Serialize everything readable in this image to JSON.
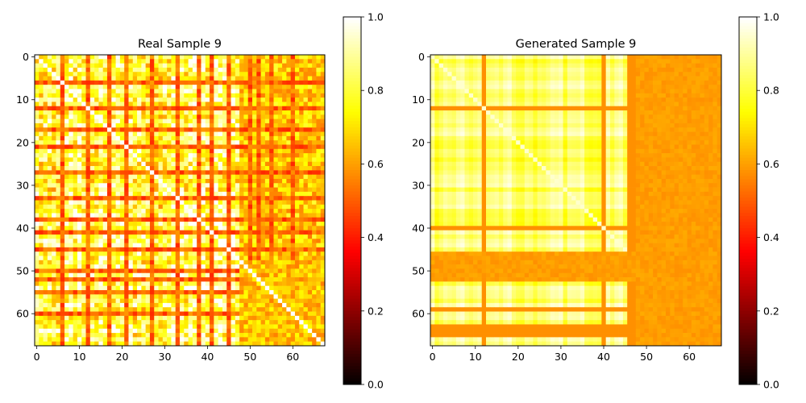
{
  "chart_data": [
    {
      "type": "heatmap",
      "title": "Real Sample 9",
      "colormap": "hot",
      "size": 68,
      "x_ticks": [
        "0",
        "10",
        "20",
        "30",
        "40",
        "50",
        "60"
      ],
      "y_ticks": [
        "0",
        "10",
        "20",
        "30",
        "40",
        "50",
        "60"
      ],
      "colorbar": {
        "vmin": 0.0,
        "vmax": 1.0,
        "ticks": [
          "0.0",
          "0.2",
          "0.4",
          "0.6",
          "0.8",
          "1.0"
        ]
      },
      "low_rows_cols": [
        6,
        12,
        17,
        21,
        27,
        33,
        38,
        41,
        45,
        50,
        52,
        55,
        60
      ],
      "pattern": "noisy yellow-white blocks crossed by red/orange lines; bottom-right region predominantly orange"
    },
    {
      "type": "heatmap",
      "title": "Generated Sample 9",
      "colormap": "hot",
      "size": 68,
      "x_ticks": [
        "0",
        "10",
        "20",
        "30",
        "40",
        "50",
        "60"
      ],
      "y_ticks": [
        "0",
        "10",
        "20",
        "30",
        "40",
        "50",
        "60"
      ],
      "colorbar": {
        "vmin": 0.0,
        "vmax": 1.0,
        "ticks": [
          "0.0",
          "0.2",
          "0.4",
          "0.6",
          "0.8",
          "1.0"
        ]
      },
      "low_rows_cols": [
        12,
        40,
        46,
        47,
        50,
        52,
        59,
        63,
        64,
        65
      ],
      "pattern": "smooth pale-yellow field with solid orange bands; columns 48-67 and rows 46-52 mostly orange"
    }
  ]
}
